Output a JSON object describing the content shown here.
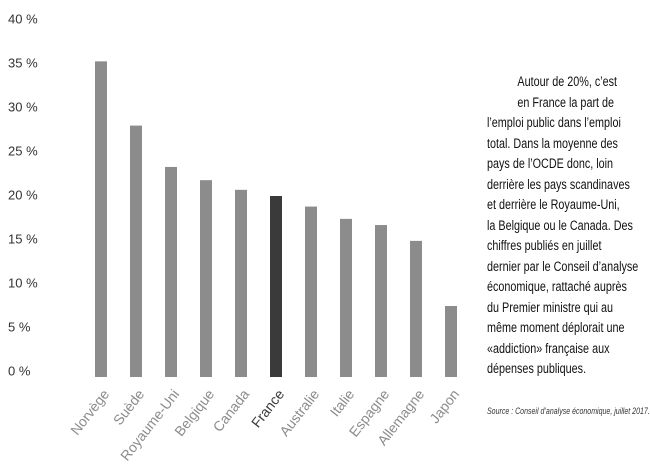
{
  "chart_data": {
    "type": "bar",
    "categories": [
      "Norvège",
      "Suède",
      "Royaume-Uni",
      "Belgique",
      "Canada",
      "France",
      "Australie",
      "Italie",
      "Espagne",
      "Allemagne",
      "Japon"
    ],
    "values": [
      35.3,
      28.0,
      23.3,
      21.8,
      20.7,
      20.0,
      18.8,
      17.4,
      16.7,
      14.9,
      7.5
    ],
    "colors": [
      "#8c8c8c",
      "#8c8c8c",
      "#8c8c8c",
      "#8c8c8c",
      "#8c8c8c",
      "#3a3a3a",
      "#8c8c8c",
      "#8c8c8c",
      "#8c8c8c",
      "#8c8c8c",
      "#8c8c8c"
    ],
    "ylim": [
      0,
      40
    ],
    "yticks": [
      {
        "value": 0,
        "label": "0 %"
      },
      {
        "value": 5,
        "label": "5 %"
      },
      {
        "value": 10,
        "label": "10 %"
      },
      {
        "value": 15,
        "label": "15 %"
      },
      {
        "value": 20,
        "label": "20 %"
      },
      {
        "value": 25,
        "label": "25 %"
      },
      {
        "value": 30,
        "label": "30 %"
      },
      {
        "value": 35,
        "label": "35 %"
      },
      {
        "value": 40,
        "label": "40 %"
      }
    ],
    "note_lines": [
      "Autour de 20%, c’est",
      "en France la part de",
      "l’emploi public dans l’emploi",
      "total. Dans la moyenne des",
      "pays de l’OCDE donc, loin",
      "derrière les pays scandinaves",
      "et derrière le Royaume-Uni,",
      "la Belgique ou le Canada. Des",
      "chiffres publiés en juillet",
      "dernier par le Conseil d’analyse",
      "économique, rattaché auprès",
      "du Premier ministre qui au",
      "même moment déplorait une",
      "«addiction» française aux",
      "dépenses publiques."
    ],
    "source": "Source : Conseil d’analyse économique, juillet 2017."
  }
}
